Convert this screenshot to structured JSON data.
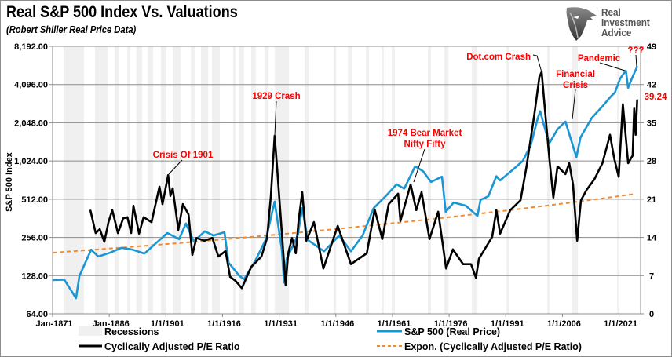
{
  "header": {
    "title": "Real S&P 500 Index Vs. Valuations",
    "subtitle": "(Robert Shiller Real Price Data)"
  },
  "logo": {
    "line1": "Real",
    "line2": "Investment",
    "line3": "Advice",
    "icon": "eagle-head-icon"
  },
  "colors": {
    "price": "#1a96d4",
    "cape": "#000000",
    "trend": "#f08a30",
    "recession": "#f0f0f0",
    "annotation": "#ff0000",
    "grid": "#8c8c8c"
  },
  "chart_data": {
    "type": "line",
    "title": "Real S&P 500 Index Vs. Valuations",
    "subtitle": "(Robert Shiller Real Price Data)",
    "ylabel": "S&P 500 Index",
    "y_scale": "log2",
    "ylim": [
      64,
      8192
    ],
    "y2lim": [
      0,
      49
    ],
    "xlim": [
      1871,
      2026.7
    ],
    "grid": true,
    "legend_placement": "bottom",
    "x_ticks": [
      "Jan-1871",
      "Jan-1886",
      "1/1/1901",
      "1/1/1916",
      "1/1/1931",
      "1/1/1946",
      "1/1/1961",
      "1/1/1976",
      "1/1/1991",
      "1/1/2006",
      "1/1/2021"
    ],
    "x_tick_years": [
      1871,
      1886,
      1901,
      1916,
      1931,
      1946,
      1961,
      1976,
      1991,
      2006,
      2021
    ],
    "y_ticks": [
      "64.00",
      "128.00",
      "256.00",
      "512.00",
      "1,024.00",
      "2,048.00",
      "4,096.00",
      "8,192.00"
    ],
    "y_tick_values": [
      64,
      128,
      256,
      512,
      1024,
      2048,
      4096,
      8192
    ],
    "y2_ticks": [
      "0",
      "7",
      "14",
      "21",
      "28",
      "35",
      "42",
      "49"
    ],
    "y2_tick_values": [
      0,
      7,
      14,
      21,
      28,
      35,
      42,
      49
    ],
    "legend": {
      "recessions": "Recessions",
      "price": "S&P 500 (Real Price)",
      "cape": "Cyclically Adjusted P/E Ratio",
      "trend": "Expon. (Cyclically Adjusted P/E Ratio)"
    },
    "recessions": [
      [
        1873.9,
        1879.3
      ],
      [
        1882.2,
        1885.6
      ],
      [
        1887.4,
        1888.5
      ],
      [
        1890.8,
        1891.6
      ],
      [
        1893.2,
        1894.7
      ],
      [
        1896.2,
        1897.6
      ],
      [
        1899.7,
        1901.1
      ],
      [
        1902.8,
        1904.9
      ],
      [
        1907.6,
        1908.6
      ],
      [
        1910.3,
        1912.2
      ],
      [
        1913.2,
        1915.3
      ],
      [
        1918.8,
        1919.4
      ],
      [
        1920.3,
        1921.7
      ],
      [
        1923.6,
        1924.8
      ],
      [
        1927.1,
        1928.2
      ],
      [
        1929.8,
        1933.6
      ],
      [
        1937.7,
        1938.8
      ],
      [
        1945.4,
        1946.1
      ],
      [
        1949.2,
        1950.2
      ],
      [
        1954.0,
        1954.8
      ],
      [
        1958.1,
        1958.7
      ],
      [
        1960.8,
        1961.6
      ],
      [
        1970.4,
        1971.2
      ],
      [
        1974.7,
        1975.8
      ],
      [
        1982.0,
        1983.5
      ],
      [
        1991.2,
        1991.8
      ],
      [
        2002.0,
        2002.6
      ],
      [
        2008.6,
        2010.1
      ],
      [
        2020.5,
        2021.1
      ]
    ],
    "series": [
      {
        "name": "S&P 500 (Real Price)",
        "axis": "left",
        "points": [
          [
            1871.0,
            118
          ],
          [
            1874.1,
            119
          ],
          [
            1877.2,
            85
          ],
          [
            1878.1,
            127
          ],
          [
            1881.2,
            205
          ],
          [
            1883.1,
            181
          ],
          [
            1886.2,
            194
          ],
          [
            1889.3,
            212
          ],
          [
            1892.2,
            205
          ],
          [
            1895.3,
            191
          ],
          [
            1898.4,
            231
          ],
          [
            1901.4,
            277
          ],
          [
            1904.5,
            248
          ],
          [
            1906.3,
            329
          ],
          [
            1908.4,
            238
          ],
          [
            1911.3,
            286
          ],
          [
            1913.6,
            265
          ],
          [
            1916.5,
            281
          ],
          [
            1917.6,
            162
          ],
          [
            1920.5,
            127
          ],
          [
            1921.7,
            120
          ],
          [
            1924.6,
            166
          ],
          [
            1927.5,
            248
          ],
          [
            1929.8,
            490
          ],
          [
            1931.7,
            205
          ],
          [
            1932.3,
            113
          ],
          [
            1933.0,
            174
          ],
          [
            1935.9,
            265
          ],
          [
            1937.1,
            435
          ],
          [
            1938.6,
            244
          ],
          [
            1942.9,
            199
          ],
          [
            1946.9,
            265
          ],
          [
            1950.0,
            199
          ],
          [
            1953.1,
            265
          ],
          [
            1956.0,
            435
          ],
          [
            1959.2,
            541
          ],
          [
            1962.1,
            671
          ],
          [
            1964.1,
            620
          ],
          [
            1967.0,
            929
          ],
          [
            1969.1,
            850
          ],
          [
            1971.2,
            700
          ],
          [
            1974.1,
            770
          ],
          [
            1975.1,
            407
          ],
          [
            1977.2,
            482
          ],
          [
            1980.4,
            455
          ],
          [
            1983.5,
            378
          ],
          [
            1984.3,
            505
          ],
          [
            1986.4,
            541
          ],
          [
            1988.5,
            776
          ],
          [
            1989.5,
            720
          ],
          [
            1992.4,
            850
          ],
          [
            1995.5,
            1024
          ],
          [
            1997.6,
            1361
          ],
          [
            1999.5,
            2241
          ],
          [
            2000.1,
            2521
          ],
          [
            2002.0,
            1575
          ],
          [
            2002.6,
            1424
          ],
          [
            2004.7,
            1820
          ],
          [
            2006.8,
            2091
          ],
          [
            2009.7,
            1097
          ],
          [
            2010.8,
            1575
          ],
          [
            2013.8,
            2241
          ],
          [
            2016.7,
            2780
          ],
          [
            2018.8,
            3300
          ],
          [
            2019.9,
            3540
          ],
          [
            2021.3,
            4575
          ],
          [
            2022.8,
            5270
          ],
          [
            2023.4,
            3860
          ],
          [
            2024.4,
            4575
          ],
          [
            2025.8,
            5680
          ]
        ]
      },
      {
        "name": "Cyclically Adjusted P/E Ratio",
        "axis": "right",
        "points": [
          [
            1881.0,
            19.0
          ],
          [
            1882.4,
            14.8
          ],
          [
            1883.5,
            15.5
          ],
          [
            1884.7,
            13.2
          ],
          [
            1885.8,
            16.8
          ],
          [
            1886.8,
            19.0
          ],
          [
            1888.3,
            14.8
          ],
          [
            1889.7,
            17.5
          ],
          [
            1890.8,
            17.7
          ],
          [
            1891.8,
            14.8
          ],
          [
            1892.4,
            19.8
          ],
          [
            1893.9,
            14.7
          ],
          [
            1895.1,
            17.7
          ],
          [
            1897.2,
            16.8
          ],
          [
            1899.3,
            23.3
          ],
          [
            1900.1,
            20.1
          ],
          [
            1901.6,
            25.4
          ],
          [
            1902.2,
            21.6
          ],
          [
            1902.8,
            23.0
          ],
          [
            1904.3,
            15.4
          ],
          [
            1905.5,
            20.1
          ],
          [
            1907.0,
            18.2
          ],
          [
            1908.0,
            10.8
          ],
          [
            1909.1,
            13.9
          ],
          [
            1911.2,
            13.4
          ],
          [
            1913.3,
            13.9
          ],
          [
            1914.9,
            10.5
          ],
          [
            1916.8,
            11.5
          ],
          [
            1918.0,
            6.8
          ],
          [
            1919.5,
            6.0
          ],
          [
            1921.1,
            4.7
          ],
          [
            1923.6,
            8.6
          ],
          [
            1926.3,
            10.5
          ],
          [
            1927.8,
            13.9
          ],
          [
            1928.8,
            21.6
          ],
          [
            1929.8,
            32.6
          ],
          [
            1930.5,
            26.3
          ],
          [
            1931.5,
            16.8
          ],
          [
            1932.7,
            5.3
          ],
          [
            1933.4,
            11.1
          ],
          [
            1934.4,
            13.9
          ],
          [
            1935.4,
            11.1
          ],
          [
            1936.1,
            16.8
          ],
          [
            1937.1,
            22.3
          ],
          [
            1938.2,
            13.4
          ],
          [
            1940.2,
            16.8
          ],
          [
            1942.7,
            8.3
          ],
          [
            1946.5,
            16.1
          ],
          [
            1950.0,
            9.1
          ],
          [
            1954.2,
            11.1
          ],
          [
            1956.3,
            19.1
          ],
          [
            1958.3,
            13.7
          ],
          [
            1960.0,
            20.1
          ],
          [
            1962.5,
            22.0
          ],
          [
            1963.1,
            17.0
          ],
          [
            1965.8,
            23.7
          ],
          [
            1967.3,
            19.0
          ],
          [
            1968.7,
            22.3
          ],
          [
            1970.8,
            13.7
          ],
          [
            1973.1,
            18.7
          ],
          [
            1975.2,
            8.3
          ],
          [
            1977.0,
            11.8
          ],
          [
            1979.7,
            9.1
          ],
          [
            1981.8,
            9.1
          ],
          [
            1983.1,
            6.6
          ],
          [
            1983.9,
            10.1
          ],
          [
            1987.4,
            14.1
          ],
          [
            1988.5,
            19.0
          ],
          [
            1989.5,
            14.7
          ],
          [
            1992.2,
            19.0
          ],
          [
            1994.9,
            20.8
          ],
          [
            1996.4,
            26.6
          ],
          [
            1998.5,
            36.2
          ],
          [
            1999.9,
            43.4
          ],
          [
            2000.5,
            44.3
          ],
          [
            2001.6,
            35.6
          ],
          [
            2002.6,
            28.0
          ],
          [
            2003.6,
            21.3
          ],
          [
            2004.7,
            27.0
          ],
          [
            2006.8,
            25.6
          ],
          [
            2007.8,
            27.6
          ],
          [
            2008.8,
            23.7
          ],
          [
            2009.9,
            13.4
          ],
          [
            2010.9,
            20.8
          ],
          [
            2012.4,
            22.7
          ],
          [
            2014.5,
            24.7
          ],
          [
            2016.6,
            27.6
          ],
          [
            2018.6,
            32.8
          ],
          [
            2019.7,
            28.5
          ],
          [
            2020.9,
            25.1
          ],
          [
            2022.0,
            38.4
          ],
          [
            2023.4,
            27.6
          ],
          [
            2024.6,
            29.0
          ],
          [
            2025.0,
            37.6
          ],
          [
            2025.4,
            32.8
          ],
          [
            2025.8,
            39.24
          ]
        ]
      },
      {
        "name": "Expon. (Cyclically Adjusted P/E Ratio)",
        "axis": "right",
        "type": "exponential-trend",
        "points": [
          [
            1871.0,
            11.2
          ],
          [
            2026.7,
            22.1
          ]
        ]
      }
    ],
    "annotations": {
      "crisis_1901": "Crisis Of 1901",
      "crash_1929": "1929 Crash",
      "bear_1974_line1": "1974 Bear Market",
      "bear_1974_line2": "Nifty Fifty",
      "dotcom": "Dot.com Crash",
      "financial_line1": "Financial",
      "financial_line2": "Crisis",
      "pandemic": "Pandemic",
      "question": "???",
      "last_value": "39.24"
    }
  }
}
